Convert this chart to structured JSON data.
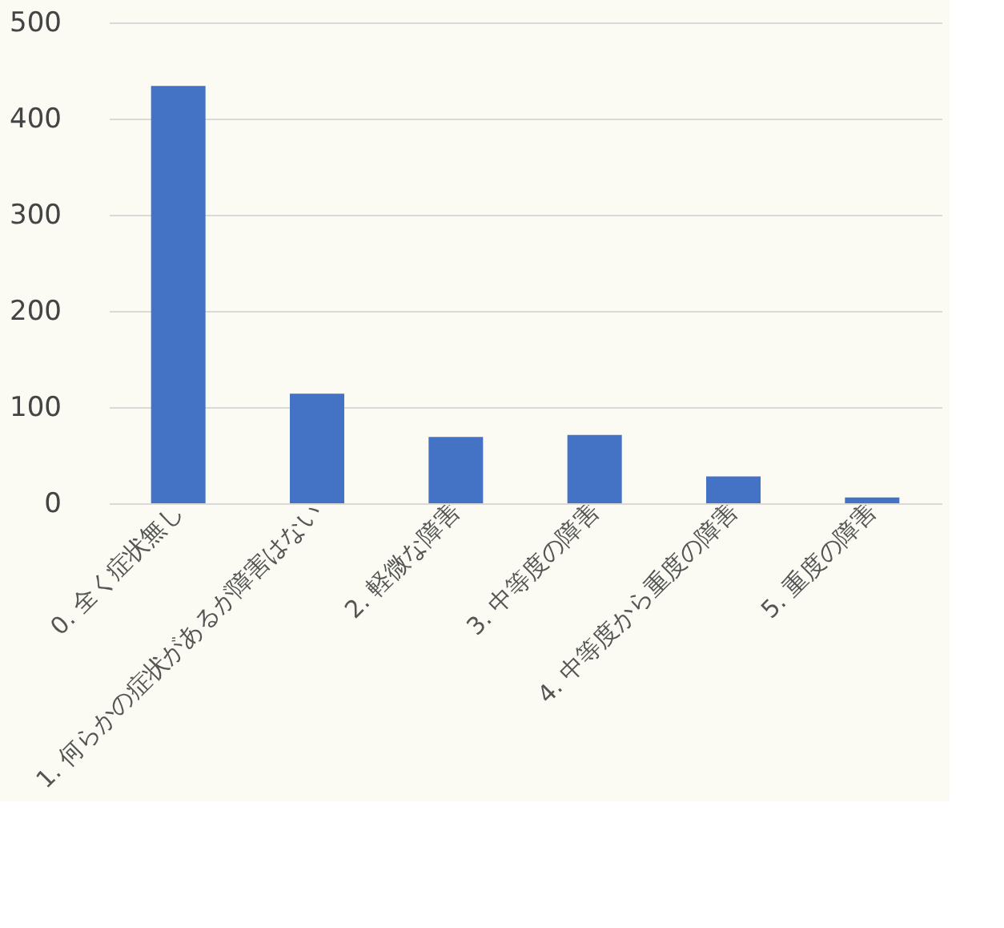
{
  "chart_data": {
    "type": "bar",
    "categories": [
      "0. 全く症状無し",
      "1. 何らかの症状があるが障害はない",
      "2. 軽微な障害",
      "3. 中等度の障害",
      "4. 中等度から重度の障害",
      "5. 重度の障害"
    ],
    "values": [
      434,
      114,
      69,
      71,
      28,
      6
    ],
    "color": "#4472c4",
    "ylim": [
      0,
      500
    ],
    "yticks": [
      0,
      100,
      200,
      300,
      400,
      500
    ],
    "grid": "y"
  }
}
